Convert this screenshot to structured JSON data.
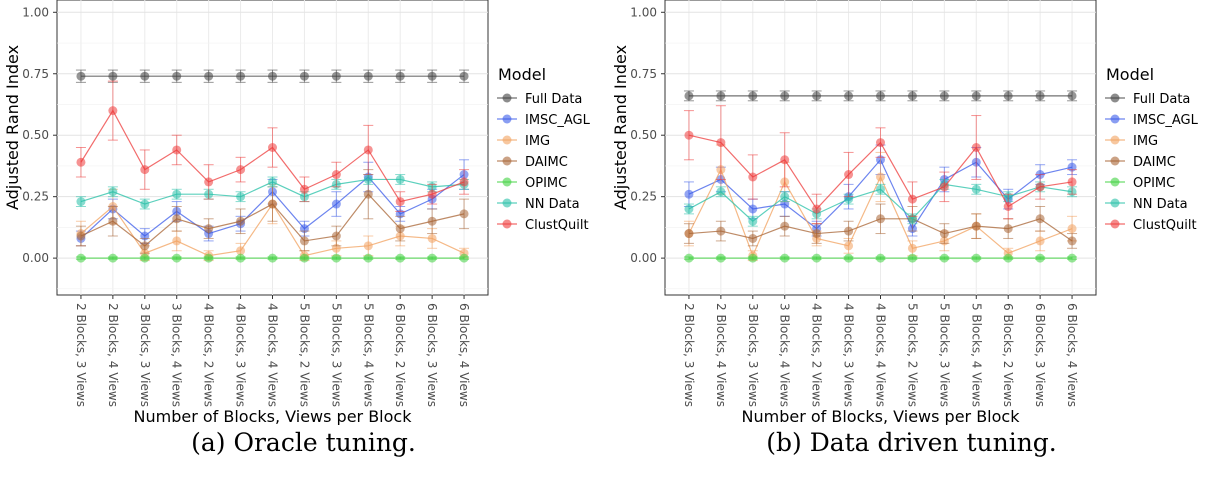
{
  "chart_data": [
    {
      "type": "line",
      "caption": "(a) Oracle tuning.",
      "xlabel": "Number of Blocks, Views per Block",
      "ylabel": "Adjusted Rand Index",
      "ylim": [
        -0.15,
        1.05
      ],
      "yticks": [
        "0.00",
        "0.25",
        "0.50",
        "0.75",
        "1.00"
      ],
      "grid": true,
      "legend_title": "Model",
      "legend_position": "right",
      "categories": [
        "2 Blocks, 3 Views",
        "2 Blocks, 4 Views",
        "3 Blocks, 3 Views",
        "3 Blocks, 4 Views",
        "4 Blocks, 2 Views",
        "4 Blocks, 3 Views",
        "4 Blocks, 4 Views",
        "5 Blocks, 2 Views",
        "5 Blocks, 3 Views",
        "5 Blocks, 4 Views",
        "6 Blocks, 2 Views",
        "6 Blocks, 3 Views",
        "6 Blocks, 4 Views"
      ],
      "series": [
        {
          "name": "Full Data",
          "color": "#404040",
          "values": [
            0.74,
            0.74,
            0.74,
            0.74,
            0.74,
            0.74,
            0.74,
            0.74,
            0.74,
            0.74,
            0.74,
            0.74,
            0.74
          ],
          "errors": [
            0.025,
            0.025,
            0.025,
            0.025,
            0.025,
            0.025,
            0.025,
            0.025,
            0.025,
            0.025,
            0.025,
            0.025,
            0.025
          ]
        },
        {
          "name": "IMSC_AGL",
          "color": "#3b5bea",
          "values": [
            0.08,
            0.2,
            0.09,
            0.19,
            0.1,
            0.14,
            0.27,
            0.12,
            0.22,
            0.33,
            0.18,
            0.24,
            0.34
          ],
          "errors": [
            0.03,
            0.04,
            0.03,
            0.04,
            0.03,
            0.03,
            0.05,
            0.03,
            0.05,
            0.06,
            0.03,
            0.04,
            0.06
          ]
        },
        {
          "name": "IMG",
          "color": "#f2a15f",
          "values": [
            0.1,
            0.21,
            0.02,
            0.07,
            0.01,
            0.03,
            0.22,
            0.01,
            0.04,
            0.05,
            0.09,
            0.08,
            0.02
          ],
          "errors": [
            0.05,
            0.07,
            0.03,
            0.04,
            0.02,
            0.03,
            0.08,
            0.02,
            0.03,
            0.04,
            0.04,
            0.04,
            0.02
          ]
        },
        {
          "name": "DAIMC",
          "color": "#a86434",
          "values": [
            0.09,
            0.15,
            0.05,
            0.16,
            0.12,
            0.15,
            0.22,
            0.07,
            0.09,
            0.26,
            0.12,
            0.15,
            0.18
          ],
          "errors": [
            0.04,
            0.06,
            0.03,
            0.05,
            0.04,
            0.05,
            0.07,
            0.04,
            0.04,
            0.1,
            0.05,
            0.05,
            0.06
          ]
        },
        {
          "name": "OPIMC",
          "color": "#3fd23f",
          "values": [
            0.0,
            0.0,
            0.0,
            0.0,
            0.0,
            0.0,
            0.0,
            0.0,
            0.0,
            0.0,
            0.0,
            0.0,
            0.0
          ],
          "errors": [
            0.005,
            0.005,
            0.005,
            0.005,
            0.005,
            0.005,
            0.005,
            0.005,
            0.005,
            0.005,
            0.005,
            0.005,
            0.005
          ]
        },
        {
          "name": "NN Data",
          "color": "#26c0a7",
          "values": [
            0.23,
            0.27,
            0.22,
            0.26,
            0.26,
            0.25,
            0.31,
            0.25,
            0.3,
            0.32,
            0.32,
            0.29,
            0.3
          ],
          "errors": [
            0.02,
            0.02,
            0.02,
            0.02,
            0.02,
            0.02,
            0.02,
            0.02,
            0.02,
            0.02,
            0.02,
            0.02,
            0.02
          ]
        },
        {
          "name": "ClustQuilt",
          "color": "#ee3b3b",
          "values": [
            0.39,
            0.6,
            0.36,
            0.44,
            0.31,
            0.36,
            0.45,
            0.28,
            0.34,
            0.44,
            0.23,
            0.26,
            0.31
          ],
          "errors": [
            0.06,
            0.12,
            0.08,
            0.06,
            0.07,
            0.05,
            0.08,
            0.05,
            0.05,
            0.1,
            0.04,
            0.04,
            0.05
          ]
        }
      ]
    },
    {
      "type": "line",
      "caption": "(b) Data driven tuning.",
      "xlabel": "Number of Blocks, Views per Block",
      "ylabel": "Adjusted Rand Index",
      "ylim": [
        -0.15,
        1.05
      ],
      "yticks": [
        "0.00",
        "0.25",
        "0.50",
        "0.75",
        "1.00"
      ],
      "grid": true,
      "legend_title": "Model",
      "legend_position": "right",
      "categories": [
        "2 Blocks, 3 Views",
        "2 Blocks, 4 Views",
        "3 Blocks, 3 Views",
        "3 Blocks, 4 Views",
        "4 Blocks, 2 Views",
        "4 Blocks, 3 Views",
        "4 Blocks, 4 Views",
        "5 Blocks, 2 Views",
        "5 Blocks, 3 Views",
        "5 Blocks, 4 Views",
        "6 Blocks, 2 Views",
        "6 Blocks, 3 Views",
        "6 Blocks, 4 Views"
      ],
      "series": [
        {
          "name": "Full Data",
          "color": "#404040",
          "values": [
            0.66,
            0.66,
            0.66,
            0.66,
            0.66,
            0.66,
            0.66,
            0.66,
            0.66,
            0.66,
            0.66,
            0.66,
            0.66
          ],
          "errors": [
            0.02,
            0.02,
            0.02,
            0.02,
            0.02,
            0.02,
            0.02,
            0.02,
            0.02,
            0.02,
            0.02,
            0.02,
            0.02
          ]
        },
        {
          "name": "IMSC_AGL",
          "color": "#3b5bea",
          "values": [
            0.26,
            0.32,
            0.2,
            0.22,
            0.12,
            0.25,
            0.4,
            0.12,
            0.32,
            0.39,
            0.24,
            0.34,
            0.37
          ],
          "errors": [
            0.05,
            0.05,
            0.04,
            0.05,
            0.03,
            0.05,
            0.06,
            0.03,
            0.05,
            0.06,
            0.04,
            0.04,
            0.03
          ]
        },
        {
          "name": "IMG",
          "color": "#f2a15f",
          "values": [
            0.1,
            0.36,
            0.01,
            0.31,
            0.08,
            0.05,
            0.33,
            0.04,
            0.07,
            0.13,
            0.02,
            0.07,
            0.12
          ],
          "errors": [
            0.05,
            0.1,
            0.02,
            0.08,
            0.03,
            0.03,
            0.1,
            0.03,
            0.04,
            0.05,
            0.02,
            0.04,
            0.05
          ]
        },
        {
          "name": "DAIMC",
          "color": "#a86434",
          "values": [
            0.1,
            0.11,
            0.08,
            0.13,
            0.1,
            0.11,
            0.16,
            0.16,
            0.1,
            0.13,
            0.12,
            0.16,
            0.07
          ],
          "errors": [
            0.04,
            0.04,
            0.03,
            0.04,
            0.04,
            0.04,
            0.06,
            0.05,
            0.04,
            0.05,
            0.04,
            0.05,
            0.03
          ]
        },
        {
          "name": "OPIMC",
          "color": "#3fd23f",
          "values": [
            0.0,
            0.0,
            0.0,
            0.0,
            0.0,
            0.0,
            0.0,
            0.0,
            0.0,
            0.0,
            0.0,
            0.0,
            0.0
          ],
          "errors": [
            0.005,
            0.005,
            0.005,
            0.005,
            0.005,
            0.005,
            0.005,
            0.005,
            0.005,
            0.005,
            0.005,
            0.005,
            0.005
          ]
        },
        {
          "name": "NN Data",
          "color": "#26c0a7",
          "values": [
            0.2,
            0.27,
            0.15,
            0.25,
            0.18,
            0.24,
            0.28,
            0.16,
            0.3,
            0.28,
            0.25,
            0.29,
            0.27
          ],
          "errors": [
            0.02,
            0.02,
            0.02,
            0.02,
            0.02,
            0.02,
            0.02,
            0.02,
            0.02,
            0.02,
            0.02,
            0.02,
            0.02
          ]
        },
        {
          "name": "ClustQuilt",
          "color": "#ee3b3b",
          "values": [
            0.5,
            0.47,
            0.33,
            0.4,
            0.2,
            0.34,
            0.47,
            0.24,
            0.29,
            0.45,
            0.21,
            0.29,
            0.31
          ],
          "errors": [
            0.1,
            0.15,
            0.09,
            0.11,
            0.06,
            0.09,
            0.06,
            0.07,
            0.06,
            0.13,
            0.05,
            0.05,
            0.05
          ]
        }
      ]
    }
  ]
}
